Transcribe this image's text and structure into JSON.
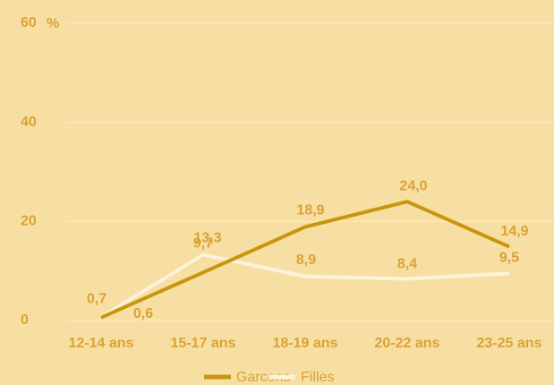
{
  "chart_data": {
    "type": "line",
    "ylabel": "%",
    "categories": [
      "12-14 ans",
      "15-17 ans",
      "18-19 ans",
      "20-22 ans",
      "23-25 ans"
    ],
    "series": [
      {
        "name": "Garcons",
        "color": "#c8960c",
        "values": [
          0.6,
          9.7,
          18.9,
          24.0,
          14.9
        ],
        "value_labels": [
          "0,6",
          "9,7",
          "18,9",
          "24,0",
          "14,9"
        ]
      },
      {
        "name": "Filles",
        "color": "#fdf2da",
        "values": [
          0.7,
          13.3,
          8.9,
          8.4,
          9.5
        ],
        "value_labels": [
          "0,7",
          "13,3",
          "8,9",
          "8,4",
          "9,5"
        ]
      }
    ],
    "ylim": [
      0,
      60
    ],
    "yticks": [
      0,
      20,
      40,
      60
    ],
    "grid": true,
    "legend": "bottom"
  }
}
